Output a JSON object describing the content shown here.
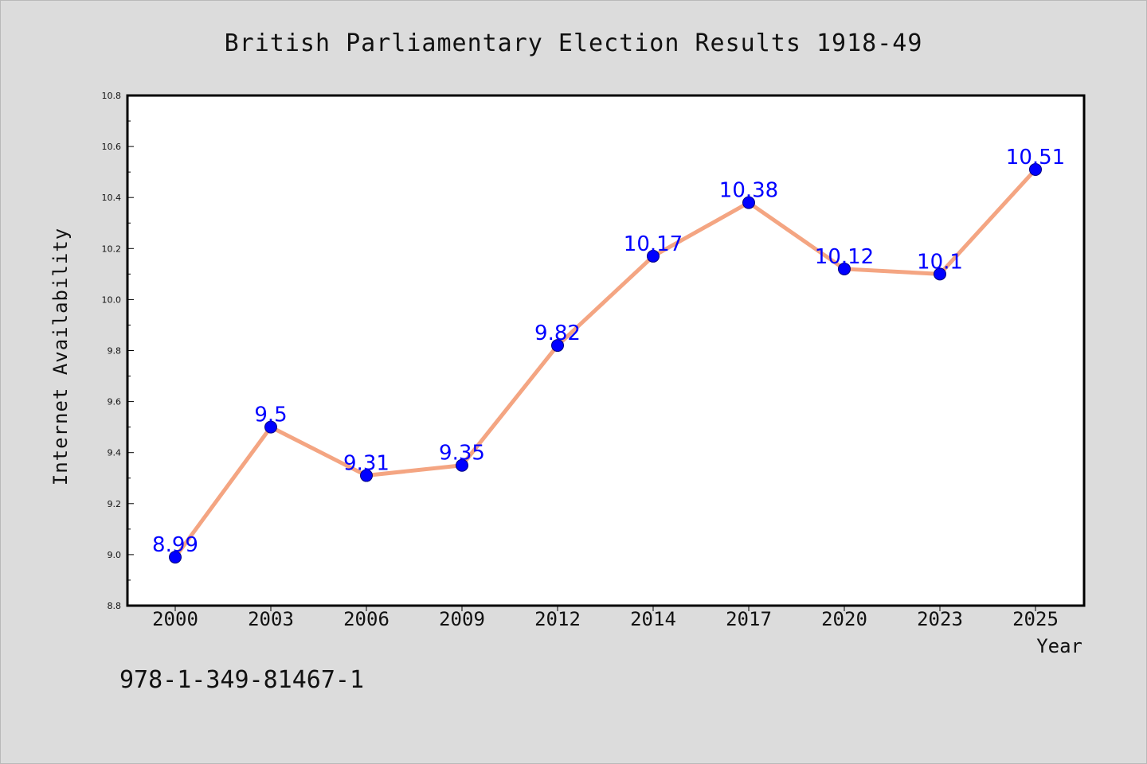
{
  "chart_data": {
    "type": "line",
    "title": "British Parliamentary Election Results 1918-49",
    "xlabel": "Year",
    "ylabel": "Internet Availability",
    "categories": [
      "2000",
      "2003",
      "2006",
      "2009",
      "2012",
      "2014",
      "2017",
      "2020",
      "2023",
      "2025"
    ],
    "values": [
      8.99,
      9.5,
      9.31,
      9.35,
      9.82,
      10.17,
      10.38,
      10.12,
      10.1,
      10.51
    ],
    "data_labels": [
      "8.99",
      "9.5",
      "9.31",
      "9.35",
      "9.82",
      "10.17",
      "10.38",
      "10.12",
      "10.1",
      "10.51"
    ],
    "ylim": [
      8.8,
      10.8
    ],
    "yticks": [
      "8.8",
      "9.0",
      "9.2",
      "9.4",
      "9.6",
      "9.8",
      "10.0",
      "10.2",
      "10.4",
      "10.6",
      "10.8"
    ],
    "grid": false,
    "colors": {
      "line": "#f4a582",
      "marker": "#0000ff",
      "marker_edge": "#000080",
      "label": "#0000ff",
      "background": "#dcdcdc",
      "plot_area": "#ffffff"
    }
  },
  "annotation": "978-1-349-81467-1"
}
